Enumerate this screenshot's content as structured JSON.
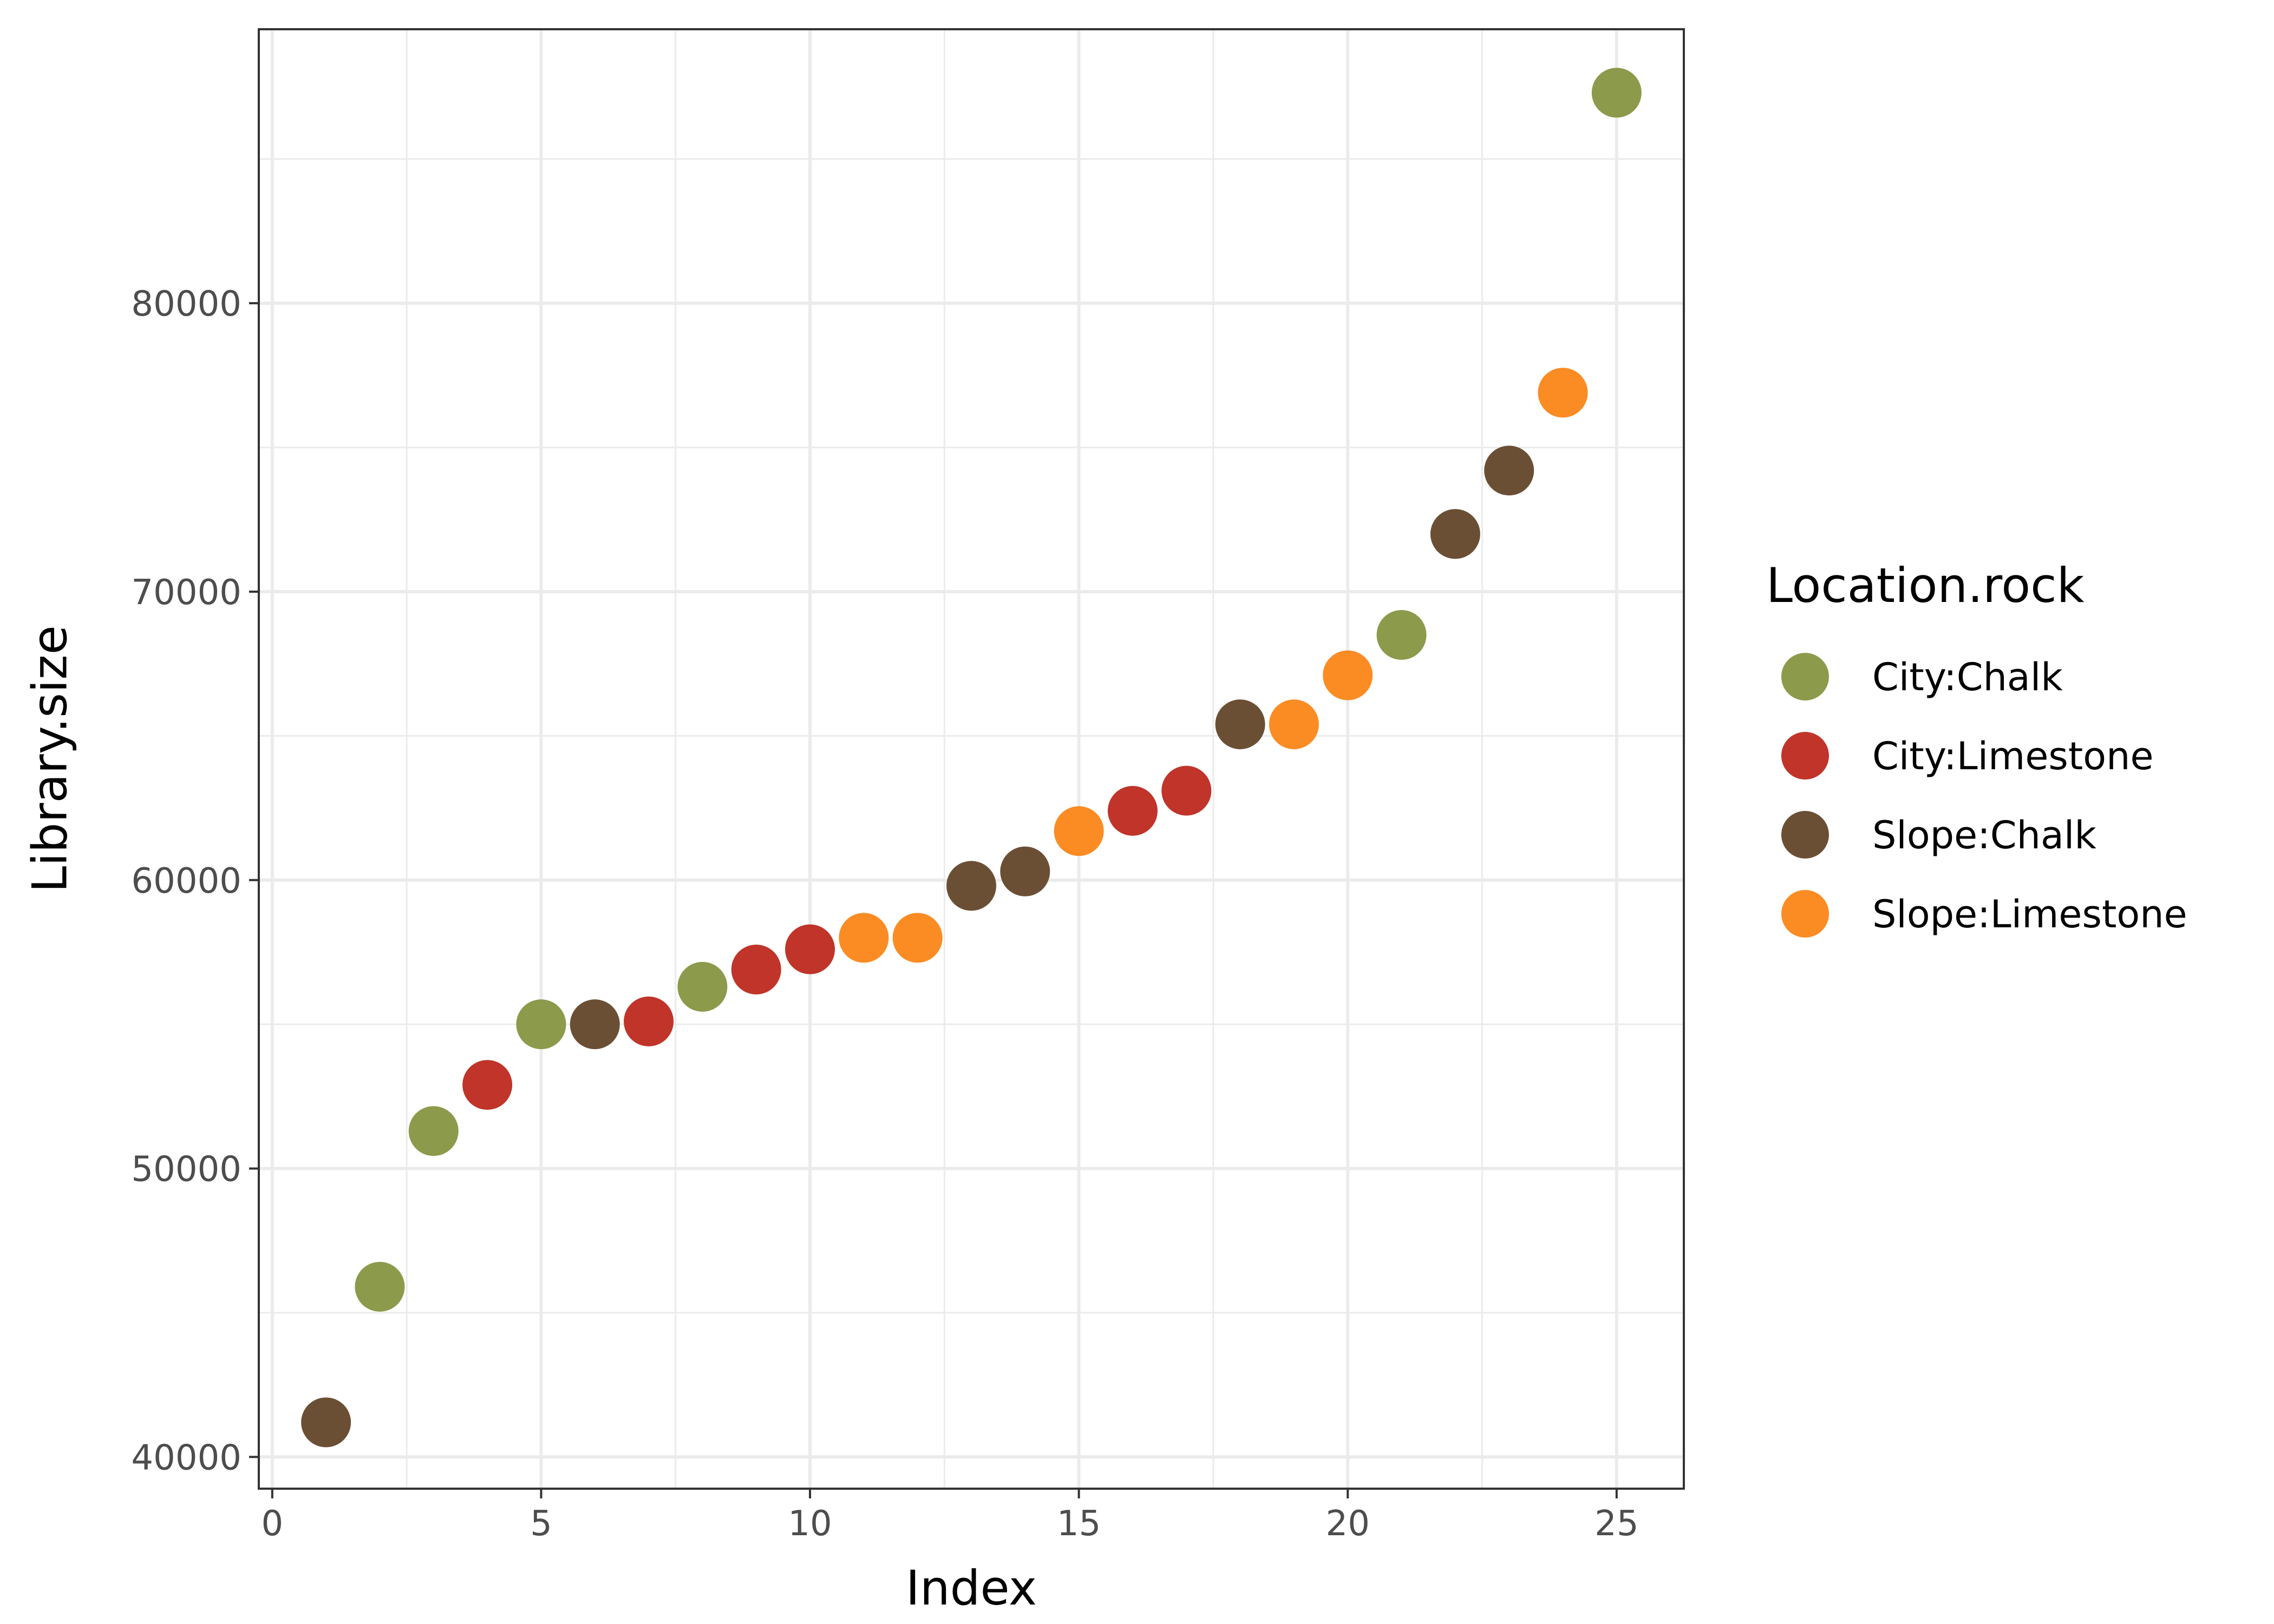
{
  "chart_data": {
    "type": "scatter",
    "title": "",
    "xlabel": "Index",
    "ylabel": "Library.size",
    "xlim": [
      -0.25,
      26.25
    ],
    "ylim": [
      38900,
      89500
    ],
    "x_ticks": [
      0,
      5,
      10,
      15,
      20,
      25
    ],
    "y_ticks": [
      40000,
      50000,
      60000,
      70000,
      80000
    ],
    "x_tick_labels": [
      "0",
      "5",
      "10",
      "15",
      "20",
      "25"
    ],
    "y_tick_labels": [
      "40000",
      "50000",
      "60000",
      "70000",
      "80000"
    ],
    "grid": true,
    "legend": {
      "title": "Location.rock",
      "placement": "right",
      "entries": [
        {
          "label": "City:Chalk",
          "color": "#8c9a4b"
        },
        {
          "label": "City:Limestone",
          "color": "#c0342a"
        },
        {
          "label": "Slope:Chalk",
          "color": "#6b4f35"
        },
        {
          "label": "Slope:Limestone",
          "color": "#fb8c24"
        }
      ]
    },
    "points": [
      {
        "x": 1,
        "y": 41200,
        "group": "Slope:Chalk"
      },
      {
        "x": 2,
        "y": 45900,
        "group": "City:Chalk"
      },
      {
        "x": 3,
        "y": 51300,
        "group": "City:Chalk"
      },
      {
        "x": 4,
        "y": 52900,
        "group": "City:Limestone"
      },
      {
        "x": 5,
        "y": 55000,
        "group": "City:Chalk"
      },
      {
        "x": 6,
        "y": 55000,
        "group": "Slope:Chalk"
      },
      {
        "x": 7,
        "y": 55100,
        "group": "City:Limestone"
      },
      {
        "x": 8,
        "y": 56300,
        "group": "City:Chalk"
      },
      {
        "x": 9,
        "y": 56900,
        "group": "City:Limestone"
      },
      {
        "x": 10,
        "y": 57600,
        "group": "City:Limestone"
      },
      {
        "x": 11,
        "y": 58000,
        "group": "Slope:Limestone"
      },
      {
        "x": 12,
        "y": 58000,
        "group": "Slope:Limestone"
      },
      {
        "x": 13,
        "y": 59800,
        "group": "Slope:Chalk"
      },
      {
        "x": 14,
        "y": 60300,
        "group": "Slope:Chalk"
      },
      {
        "x": 15,
        "y": 61700,
        "group": "Slope:Limestone"
      },
      {
        "x": 16,
        "y": 62400,
        "group": "City:Limestone"
      },
      {
        "x": 17,
        "y": 63100,
        "group": "City:Limestone"
      },
      {
        "x": 18,
        "y": 65400,
        "group": "Slope:Chalk"
      },
      {
        "x": 19,
        "y": 65400,
        "group": "Slope:Limestone"
      },
      {
        "x": 20,
        "y": 67100,
        "group": "Slope:Limestone"
      },
      {
        "x": 21,
        "y": 68500,
        "group": "City:Chalk"
      },
      {
        "x": 22,
        "y": 72000,
        "group": "Slope:Chalk"
      },
      {
        "x": 23,
        "y": 74200,
        "group": "Slope:Chalk"
      },
      {
        "x": 24,
        "y": 76900,
        "group": "Slope:Limestone"
      },
      {
        "x": 25,
        "y": 87300,
        "group": "City:Chalk"
      }
    ]
  }
}
